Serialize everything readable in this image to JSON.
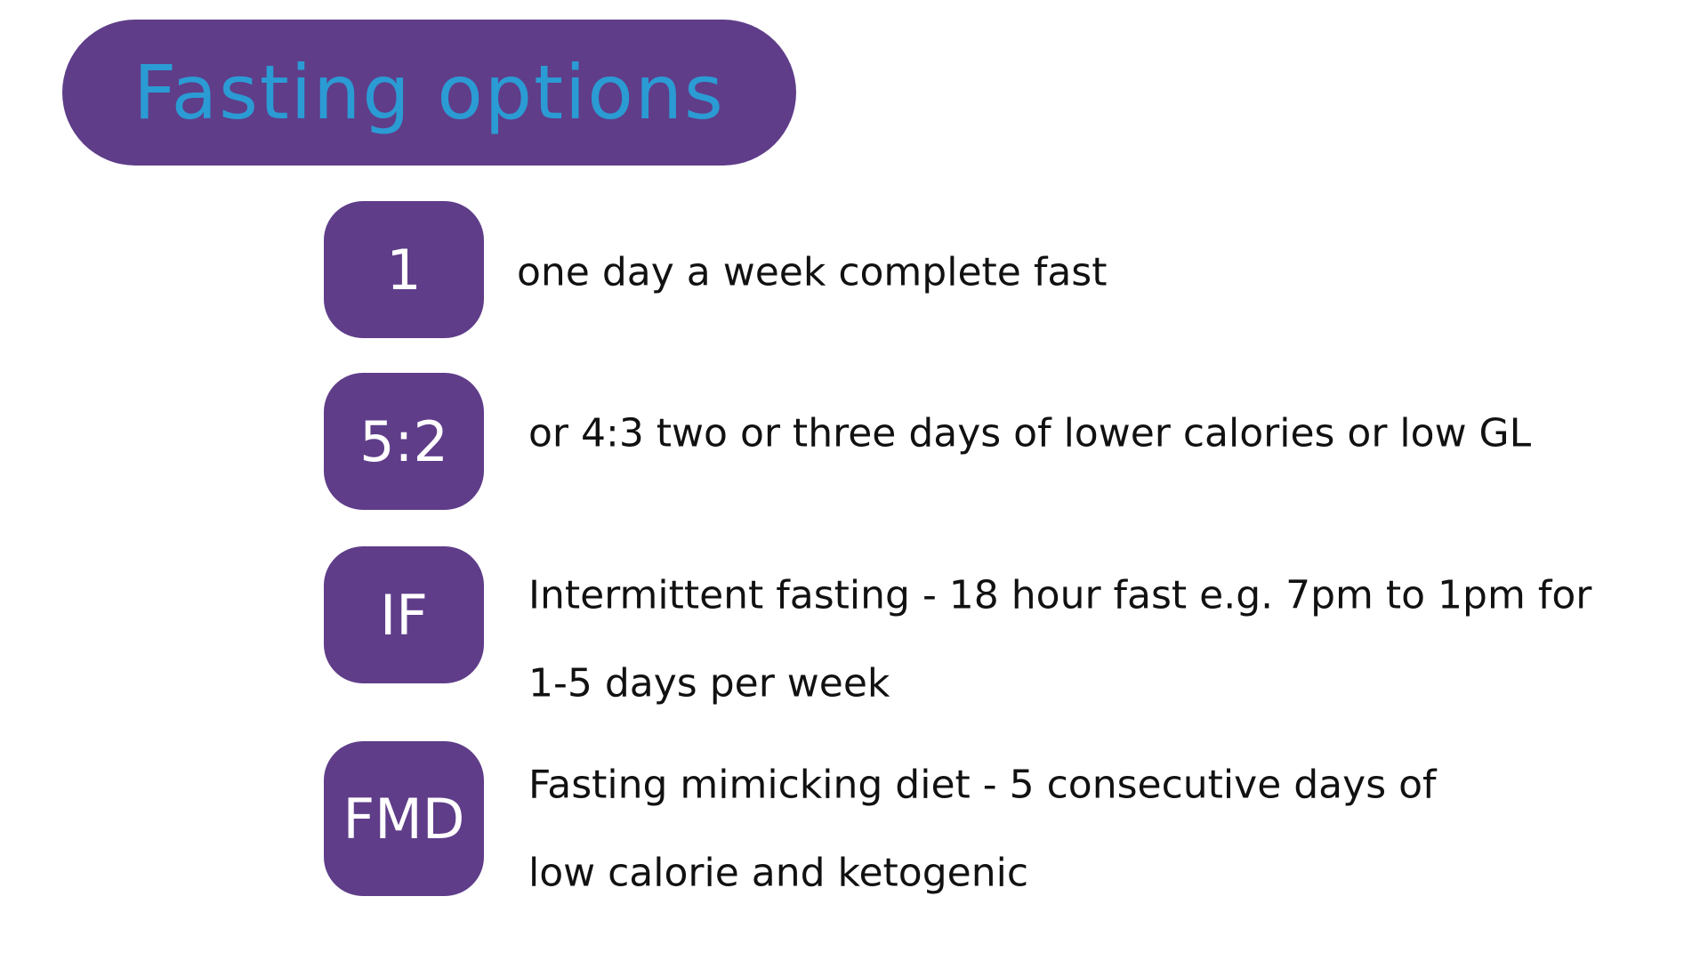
{
  "title": "Fasting options",
  "options": [
    {
      "badge": "1",
      "lines": [
        "one day a week complete fast"
      ]
    },
    {
      "badge": "5:2",
      "lines": [
        "or 4:3 two or three days of lower calories or low GL"
      ]
    },
    {
      "badge": "IF",
      "lines": [
        "Intermittent fasting - 18 hour fast e.g. 7pm to 1pm for",
        "1-5 days per week"
      ]
    },
    {
      "badge": "FMD",
      "lines": [
        "Fasting mimicking diet - 5 consecutive days of",
        "low calorie and ketogenic"
      ]
    }
  ]
}
